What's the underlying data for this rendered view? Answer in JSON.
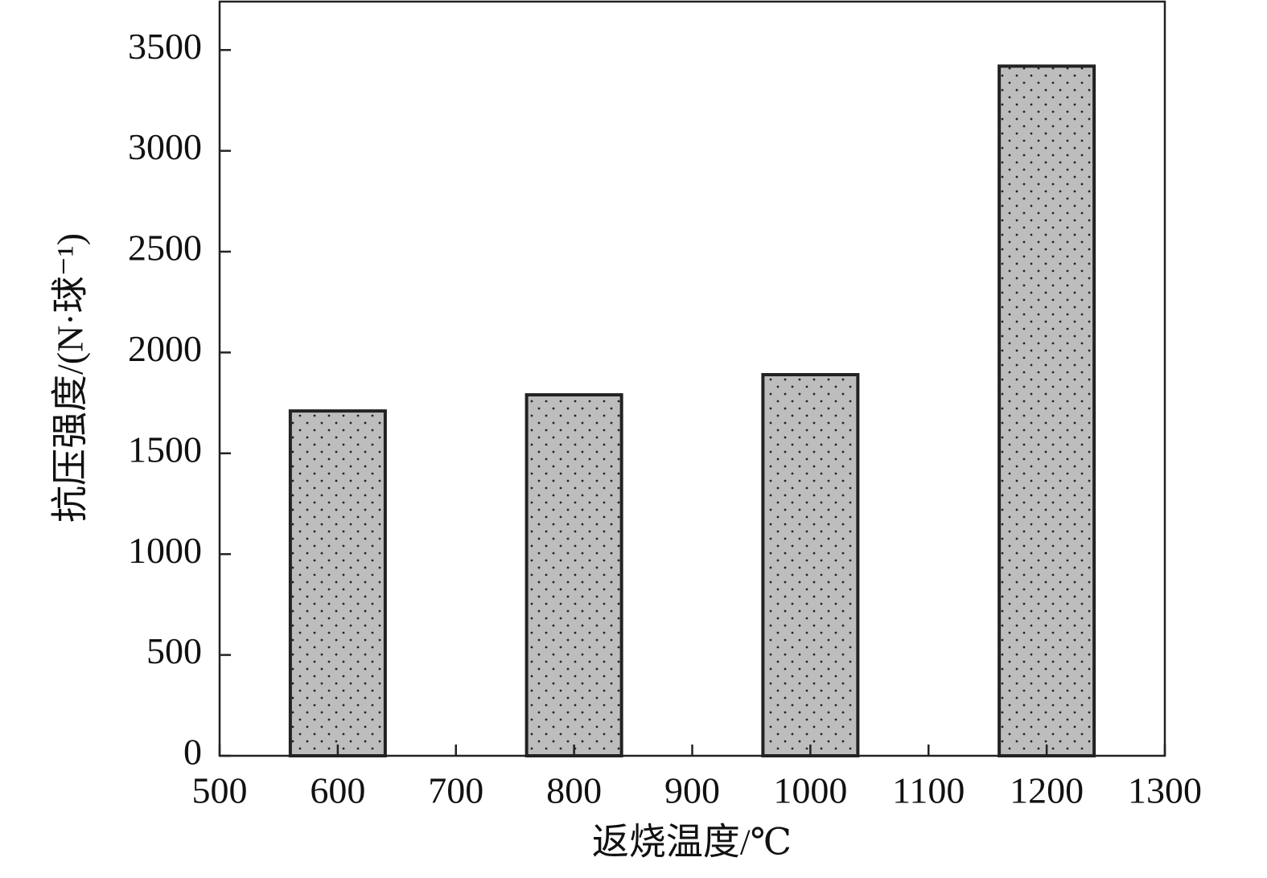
{
  "chart_data": {
    "type": "bar",
    "x": [
      600,
      800,
      1000,
      1200
    ],
    "values": [
      1710,
      1790,
      1890,
      3420
    ],
    "color": "#bdbdbd",
    "xlim": [
      500,
      1300
    ],
    "xticks": [
      500,
      600,
      700,
      800,
      900,
      1000,
      1100,
      1200,
      1300
    ],
    "ylim": [
      0,
      3740
    ],
    "yticks": [
      0,
      500,
      1000,
      1500,
      2000,
      2500,
      3000,
      3500
    ],
    "xlabel": "返烧温度/℃",
    "ylabel": "抗压强度/(N·球⁻¹)",
    "grid": false
  }
}
